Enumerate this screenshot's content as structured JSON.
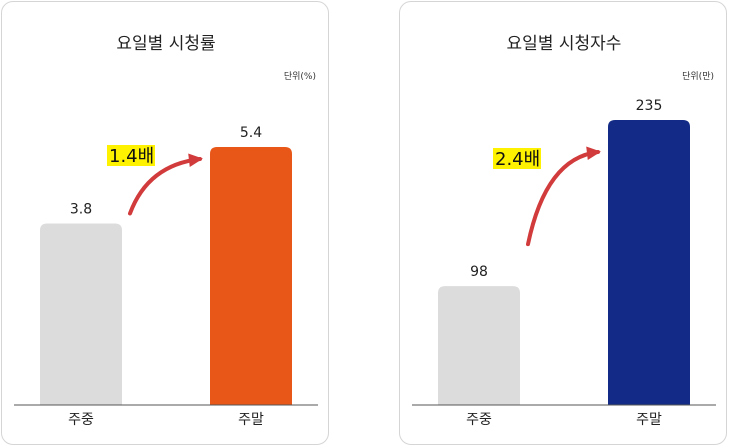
{
  "chart_data": [
    {
      "type": "bar",
      "title": "요일별 시청률",
      "unit_label": "단위(%)",
      "categories": [
        "주중",
        "주말"
      ],
      "values": [
        3.8,
        5.4
      ],
      "value_labels": [
        "3.8",
        "5.4"
      ],
      "colors": [
        "#dcdcdc",
        "#e85718"
      ],
      "annotation": "1.4배",
      "ylim": [
        0,
        6
      ],
      "grid": false
    },
    {
      "type": "bar",
      "title": "요일별 시청자수",
      "unit_label": "단위(만)",
      "categories": [
        "주중",
        "주말"
      ],
      "values": [
        98,
        235
      ],
      "value_labels": [
        "98",
        "235"
      ],
      "colors": [
        "#dcdcdc",
        "#132b86"
      ],
      "annotation": "2.4배",
      "ylim": [
        0,
        280
      ],
      "grid": false
    }
  ],
  "arrow_color": "#d23b3b",
  "highlight_color": "#fff200"
}
